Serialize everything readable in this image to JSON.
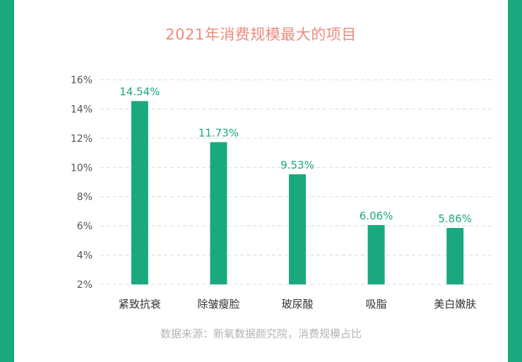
{
  "title": "2021年消费规模最大的项目",
  "source": "数据来源：新氧数据颜究院，消费规模占比",
  "colors": {
    "bar": "#1aa87f",
    "frame": "#1aa87f",
    "title": "#ec8b7d",
    "grid": "#d9d9d9"
  },
  "chart_data": {
    "type": "bar",
    "title": "2021年消费规模最大的项目",
    "categories": [
      "紧致抗衰",
      "除皱瘦脸",
      "玻尿酸",
      "吸脂",
      "美白嫩肤"
    ],
    "values": [
      14.54,
      11.73,
      9.53,
      6.06,
      5.86
    ],
    "value_labels": [
      "14.54%",
      "11.73%",
      "9.53%",
      "6.06%",
      "5.86%"
    ],
    "xlabel": "",
    "ylabel": "",
    "ylim": [
      2,
      16
    ],
    "yticks": [
      2,
      4,
      6,
      8,
      10,
      12,
      14,
      16
    ],
    "ytick_labels": [
      "2%",
      "4%",
      "6%",
      "8%",
      "10%",
      "12%",
      "14%",
      "16%"
    ],
    "grid": true,
    "legend": "none"
  }
}
